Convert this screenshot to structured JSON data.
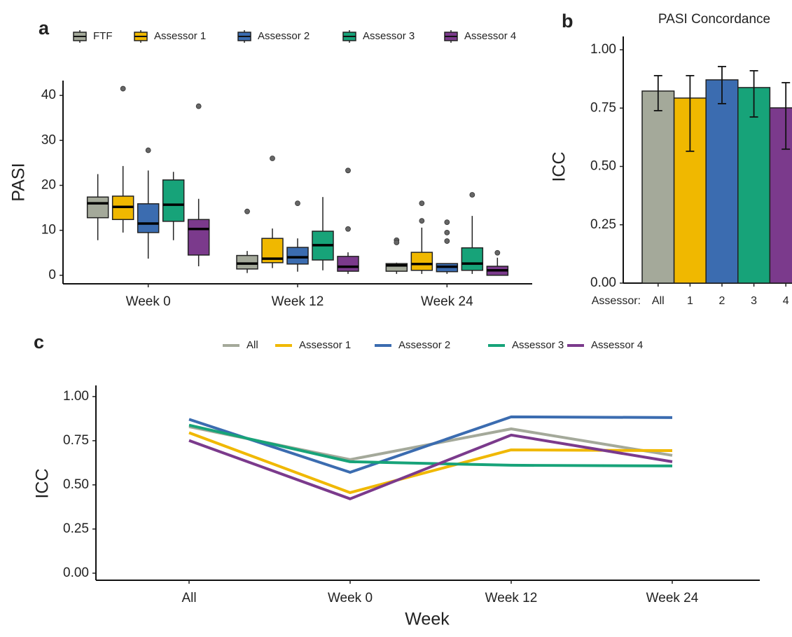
{
  "chart_data": [
    {
      "type": "boxplot",
      "panel": "a",
      "ylabel": "PASI",
      "categories": [
        "Week 0",
        "Week 12",
        "Week 24"
      ],
      "ylim": [
        -1.9,
        43.3
      ],
      "yticks": [
        0,
        10,
        20,
        30,
        40
      ],
      "series": [
        {
          "name": "FTF",
          "color": "#a4a99a",
          "min": [
            7.8,
            0.5,
            0.3
          ],
          "q1": [
            12.8,
            1.4,
            0.9
          ],
          "median": [
            16.0,
            2.6,
            2.2
          ],
          "q3": [
            17.4,
            4.4,
            2.6
          ],
          "max": [
            22.5,
            5.4,
            2.8
          ],
          "outliers": [
            [],
            [
              14.2
            ],
            [
              7.8,
              7.3
            ]
          ]
        },
        {
          "name": "Assessor 1",
          "color": "#f0b800",
          "min": [
            9.5,
            1.6,
            0.3
          ],
          "q1": [
            12.4,
            2.8,
            1.1
          ],
          "median": [
            15.2,
            3.7,
            2.5
          ],
          "q3": [
            17.6,
            8.2,
            5.1
          ],
          "max": [
            24.3,
            10.4,
            10.6
          ],
          "outliers": [
            [
              41.5
            ],
            [
              26.0
            ],
            [
              16.0,
              12.1
            ]
          ]
        },
        {
          "name": "Assessor 2",
          "color": "#3b6cb0",
          "min": [
            3.7,
            0.8,
            0.3
          ],
          "q1": [
            9.5,
            2.5,
            0.8
          ],
          "median": [
            11.5,
            4.0,
            1.9
          ],
          "q3": [
            15.9,
            6.2,
            2.6
          ],
          "max": [
            23.3,
            8.2,
            2.6
          ],
          "outliers": [
            [
              27.8
            ],
            [
              16.0
            ],
            [
              11.8,
              9.5,
              7.6
            ]
          ]
        },
        {
          "name": "Assessor 3",
          "color": "#17a379",
          "min": [
            7.8,
            1.1,
            0.3
          ],
          "q1": [
            12.0,
            3.4,
            1.1
          ],
          "median": [
            15.7,
            6.7,
            2.6
          ],
          "q3": [
            21.2,
            9.8,
            6.1
          ],
          "max": [
            23.0,
            17.4,
            13.2
          ],
          "outliers": [
            [],
            [],
            [
              17.9
            ]
          ]
        },
        {
          "name": "Assessor 4",
          "color": "#7b3a8c",
          "min": [
            2.0,
            0.3,
            0
          ],
          "q1": [
            4.5,
            0.9,
            0
          ],
          "median": [
            10.3,
            1.9,
            1.1
          ],
          "q3": [
            12.4,
            4.2,
            2.0
          ],
          "max": [
            17.0,
            5.1,
            3.9
          ],
          "outliers": [
            [
              37.6
            ],
            [
              23.3,
              10.3
            ],
            [
              5.0
            ]
          ]
        }
      ]
    },
    {
      "type": "bar",
      "panel": "b",
      "title": "PASI Concordance",
      "ylabel": "ICC",
      "xprefix": "Assessor:",
      "categories": [
        "All",
        "1",
        "2",
        "3",
        "4"
      ],
      "values": [
        0.823,
        0.793,
        0.871,
        0.838,
        0.751
      ],
      "err_low": [
        0.739,
        0.565,
        0.769,
        0.712,
        0.574
      ],
      "err_high": [
        0.889,
        0.889,
        0.928,
        0.91,
        0.859
      ],
      "colors": [
        "#a4a99a",
        "#f0b800",
        "#3b6cb0",
        "#17a379",
        "#7b3a8c"
      ],
      "ylim": [
        0,
        1.057
      ],
      "yticks": [
        {
          "value": 0,
          "label": "0.00"
        },
        0.25,
        {
          "value": 0.5,
          "label": "0.50"
        },
        0.75,
        {
          "value": 1,
          "label": "1.00"
        }
      ]
    },
    {
      "type": "line",
      "panel": "c",
      "xlabel": "Week",
      "ylabel": "ICC",
      "categories": [
        "All",
        "Week 0",
        "Week 12",
        "Week 24"
      ],
      "ylim": [
        -0.04,
        1.063
      ],
      "yticks": [
        {
          "value": 0,
          "label": "0.00"
        },
        0.25,
        {
          "value": 0.5,
          "label": "0.50"
        },
        0.75,
        {
          "value": 1,
          "label": "1.00"
        }
      ],
      "series": [
        {
          "name": "All",
          "color": "#a4a99a",
          "values": [
            0.829,
            0.643,
            0.817,
            0.667
          ]
        },
        {
          "name": "Assessor 1",
          "color": "#f0b800",
          "values": [
            0.795,
            0.456,
            0.698,
            0.694
          ]
        },
        {
          "name": "Assessor 2",
          "color": "#3b6cb0",
          "values": [
            0.871,
            0.571,
            0.885,
            0.881
          ]
        },
        {
          "name": "Assessor 3",
          "color": "#17a379",
          "values": [
            0.838,
            0.631,
            0.611,
            0.607
          ]
        },
        {
          "name": "Assessor 4",
          "color": "#7b3a8c",
          "values": [
            0.751,
            0.421,
            0.782,
            0.631
          ]
        }
      ]
    }
  ]
}
